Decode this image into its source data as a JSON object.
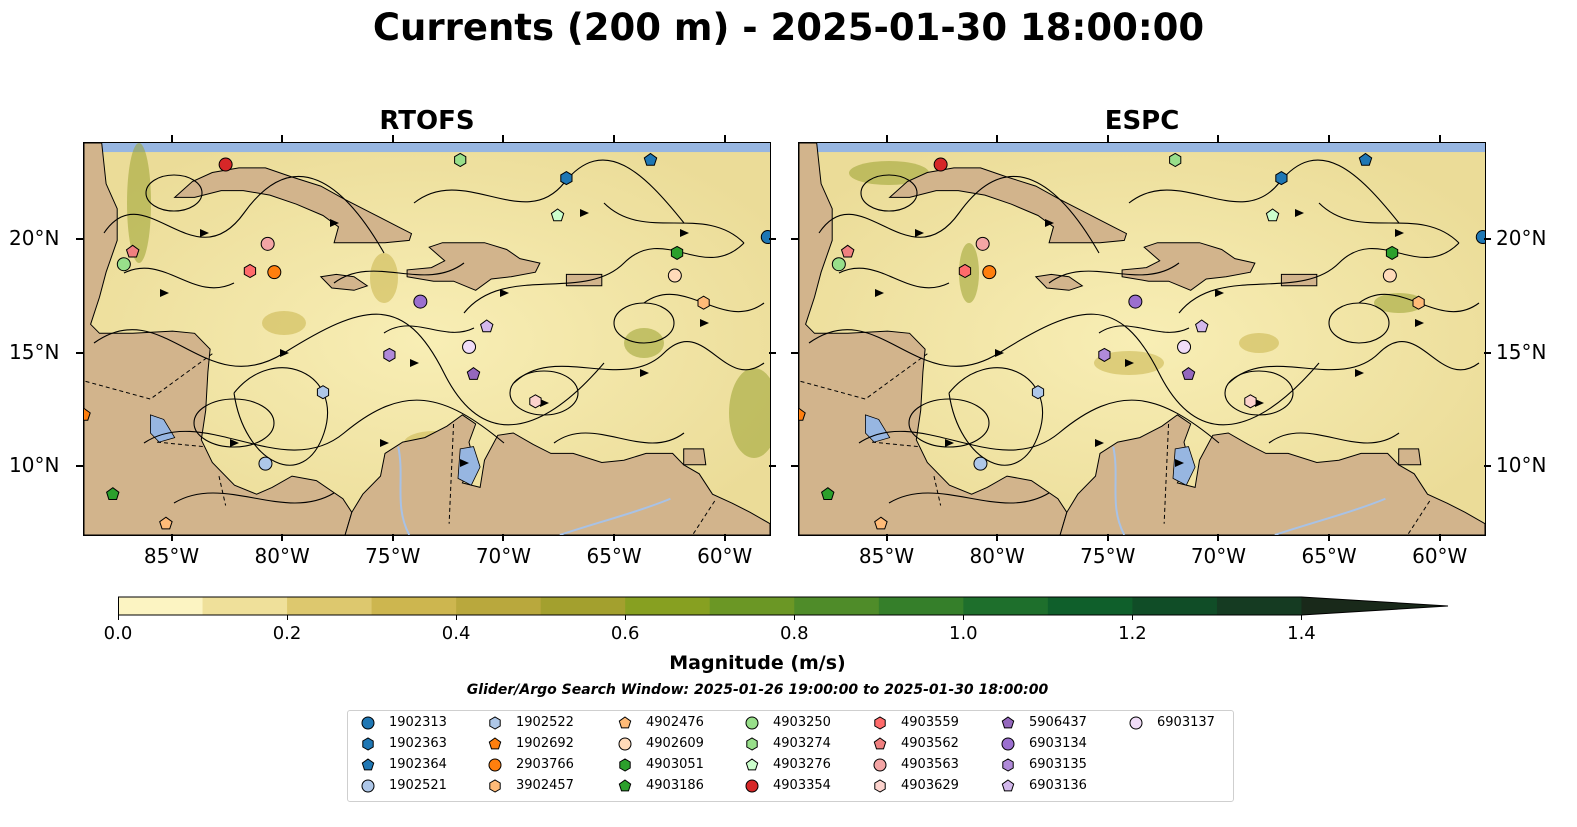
{
  "figure": {
    "title": "Currents (200 m) - 2025-01-30 18:00:00",
    "search_window": "Glider/Argo Search Window: 2025-01-26 19:00:00 to 2025-01-30 18:00:00"
  },
  "panels": [
    {
      "title": "RTOFS"
    },
    {
      "title": "ESPC"
    }
  ],
  "map_extent": {
    "lon": [
      -89,
      -58
    ],
    "lat": [
      7,
      24.3
    ]
  },
  "axes": {
    "lon_ticks": [
      {
        "value": -85,
        "label": "85°W"
      },
      {
        "value": -80,
        "label": "80°W"
      },
      {
        "value": -75,
        "label": "75°W"
      },
      {
        "value": -70,
        "label": "70°W"
      },
      {
        "value": -65,
        "label": "65°W"
      },
      {
        "value": -60,
        "label": "60°W"
      }
    ],
    "lat_ticks": [
      {
        "value": 10,
        "label": "10°N"
      },
      {
        "value": 15,
        "label": "15°N"
      },
      {
        "value": 20,
        "label": "20°N"
      }
    ]
  },
  "colorbar": {
    "label": "Magnitude (m/s)",
    "range": [
      0,
      1.5
    ],
    "extend": "max",
    "ticks": [
      "0.0",
      "0.2",
      "0.4",
      "0.6",
      "0.8",
      "1.0",
      "1.2",
      "1.4"
    ],
    "colors": [
      "#fcf4c2",
      "#efe09a",
      "#ddc86e",
      "#cdb64f",
      "#b9a83d",
      "#a3a02e",
      "#87a021",
      "#6b9725",
      "#4f8c29",
      "#357f2a",
      "#1e6f2c",
      "#0f5f2b",
      "#104d27",
      "#153b22",
      "#19291a"
    ]
  },
  "map_colors": {
    "ocean": "#97b6e1",
    "land": "#d2b48c",
    "river": "#a8c2e6"
  },
  "floats": [
    {
      "id": "1902313",
      "color": "#1f77b4",
      "marker": "circle",
      "lon": -58.1,
      "lat": 20.15
    },
    {
      "id": "1902363",
      "color": "#1f77b4",
      "marker": "hexagon",
      "lon": -67.2,
      "lat": 22.75
    },
    {
      "id": "1902364",
      "color": "#1f77b4",
      "marker": "pentagon",
      "lon": -63.4,
      "lat": 23.55
    },
    {
      "id": "1902521",
      "color": "#aec7e8",
      "marker": "circle",
      "lon": -80.8,
      "lat": 10.15
    },
    {
      "id": "1902522",
      "color": "#aec7e8",
      "marker": "hexagon",
      "lon": -78.2,
      "lat": 13.3
    },
    {
      "id": "1902692",
      "color": "#ff7f0e",
      "marker": "pentagon",
      "lon": -89.0,
      "lat": 12.3
    },
    {
      "id": "2903766",
      "color": "#ff7f0e",
      "marker": "circle",
      "lon": -80.4,
      "lat": 18.6
    },
    {
      "id": "3902457",
      "color": "#ffbb78",
      "marker": "hexagon",
      "lon": -61.0,
      "lat": 17.25
    },
    {
      "id": "4902476",
      "color": "#ffbb78",
      "marker": "pentagon",
      "lon": -85.3,
      "lat": 7.5
    },
    {
      "id": "4902609",
      "color": "#ffdab9",
      "marker": "circle",
      "lon": -62.3,
      "lat": 18.45
    },
    {
      "id": "4903051",
      "color": "#2ca02c",
      "marker": "hexagon",
      "lon": -62.2,
      "lat": 19.45
    },
    {
      "id": "4903186",
      "color": "#2ca02c",
      "marker": "pentagon",
      "lon": -87.7,
      "lat": 8.8
    },
    {
      "id": "4903250",
      "color": "#98df8a",
      "marker": "circle",
      "lon": -87.2,
      "lat": 18.95
    },
    {
      "id": "4903274",
      "color": "#98df8a",
      "marker": "hexagon",
      "lon": -72.0,
      "lat": 23.55
    },
    {
      "id": "4903276",
      "color": "#ccffcc",
      "marker": "pentagon",
      "lon": -67.6,
      "lat": 21.1
    },
    {
      "id": "4903354",
      "color": "#d62728",
      "marker": "circle",
      "lon": -82.6,
      "lat": 23.35
    },
    {
      "id": "4903559",
      "color": "#ff6b6b",
      "marker": "hexagon",
      "lon": -81.5,
      "lat": 18.65
    },
    {
      "id": "4903562",
      "color": "#f08080",
      "marker": "pentagon",
      "lon": -86.8,
      "lat": 19.5
    },
    {
      "id": "4903563",
      "color": "#f4a5a5",
      "marker": "circle",
      "lon": -80.7,
      "lat": 19.85
    },
    {
      "id": "4903629",
      "color": "#fcd3cd",
      "marker": "hexagon",
      "lon": -68.6,
      "lat": 12.9
    },
    {
      "id": "5906437",
      "color": "#9467bd",
      "marker": "pentagon",
      "lon": -71.4,
      "lat": 14.1
    },
    {
      "id": "6903134",
      "color": "#9b6fcf",
      "marker": "circle",
      "lon": -73.8,
      "lat": 17.3
    },
    {
      "id": "6903135",
      "color": "#b08ad9",
      "marker": "hexagon",
      "lon": -75.2,
      "lat": 14.95
    },
    {
      "id": "6903136",
      "color": "#d3b8ec",
      "marker": "pentagon",
      "lon": -70.8,
      "lat": 16.2
    },
    {
      "id": "6903137",
      "color": "#f0dcf7",
      "marker": "circle",
      "lon": -71.6,
      "lat": 15.3
    }
  ]
}
